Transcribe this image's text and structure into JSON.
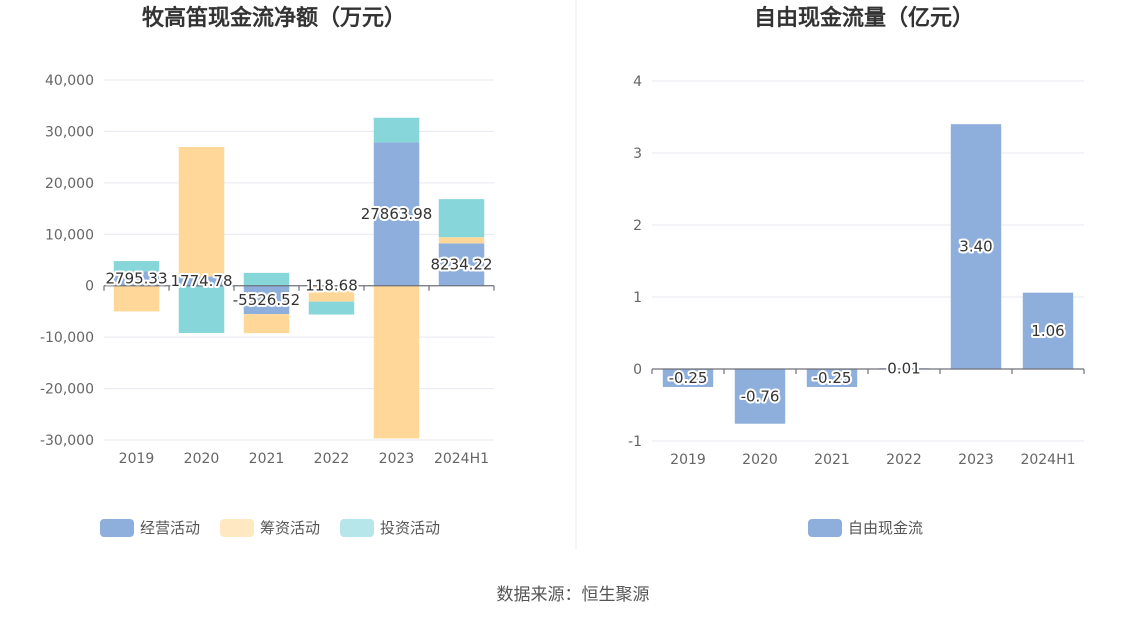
{
  "colors": {
    "operating": "#8eaedc",
    "financing": "#ffd899",
    "investing": "#86d6da",
    "fcf": "#8eaedc",
    "grid": "#e6e9f0"
  },
  "chart_data": [
    {
      "type": "bar",
      "stacked": true,
      "title": "牧高笛现金流净额（万元）",
      "categories": [
        "2019",
        "2020",
        "2021",
        "2022",
        "2023",
        "2024H1"
      ],
      "ylim": [
        -30000,
        40000
      ],
      "yticks": [
        40000,
        30000,
        20000,
        10000,
        0,
        -10000,
        -20000,
        -30000
      ],
      "ytick_labels": [
        "40,000",
        "30,000",
        "20,000",
        "10,000",
        "0",
        "-10,000",
        "-20,000",
        "-30,000"
      ],
      "grid": true,
      "legend": "bottom",
      "series": [
        {
          "name": "经营活动",
          "key": "operating",
          "values": [
            2795.33,
            1774.78,
            -5526.52,
            118.68,
            27863.98,
            8234.22
          ]
        },
        {
          "name": "筹资活动",
          "key": "financing",
          "values": [
            -5000,
            25200,
            -3700,
            -3100,
            -29700,
            1200
          ]
        },
        {
          "name": "投资活动",
          "key": "investing",
          "values": [
            2000,
            -9200,
            2500,
            -2500,
            4800,
            7400
          ]
        }
      ],
      "data_labels": [
        "2795.33",
        "1774.78",
        "-5526.52",
        "118.68",
        "27863.98",
        "8234.22"
      ]
    },
    {
      "type": "bar",
      "title": "自由现金流量（亿元）",
      "categories": [
        "2019",
        "2020",
        "2021",
        "2022",
        "2023",
        "2024H1"
      ],
      "ylim": [
        -1,
        4
      ],
      "yticks": [
        4,
        3,
        2,
        1,
        0,
        -1
      ],
      "ytick_labels": [
        "4",
        "3",
        "2",
        "1",
        "0",
        "-1"
      ],
      "grid": true,
      "legend": "bottom",
      "series": [
        {
          "name": "自由现金流",
          "key": "fcf",
          "values": [
            -0.25,
            -0.76,
            -0.25,
            0.01,
            3.4,
            1.06
          ]
        }
      ],
      "data_labels": [
        "-0.25",
        "-0.76",
        "-0.25",
        "0.01",
        "3.40",
        "1.06"
      ]
    }
  ],
  "source": "数据来源：恒生聚源"
}
